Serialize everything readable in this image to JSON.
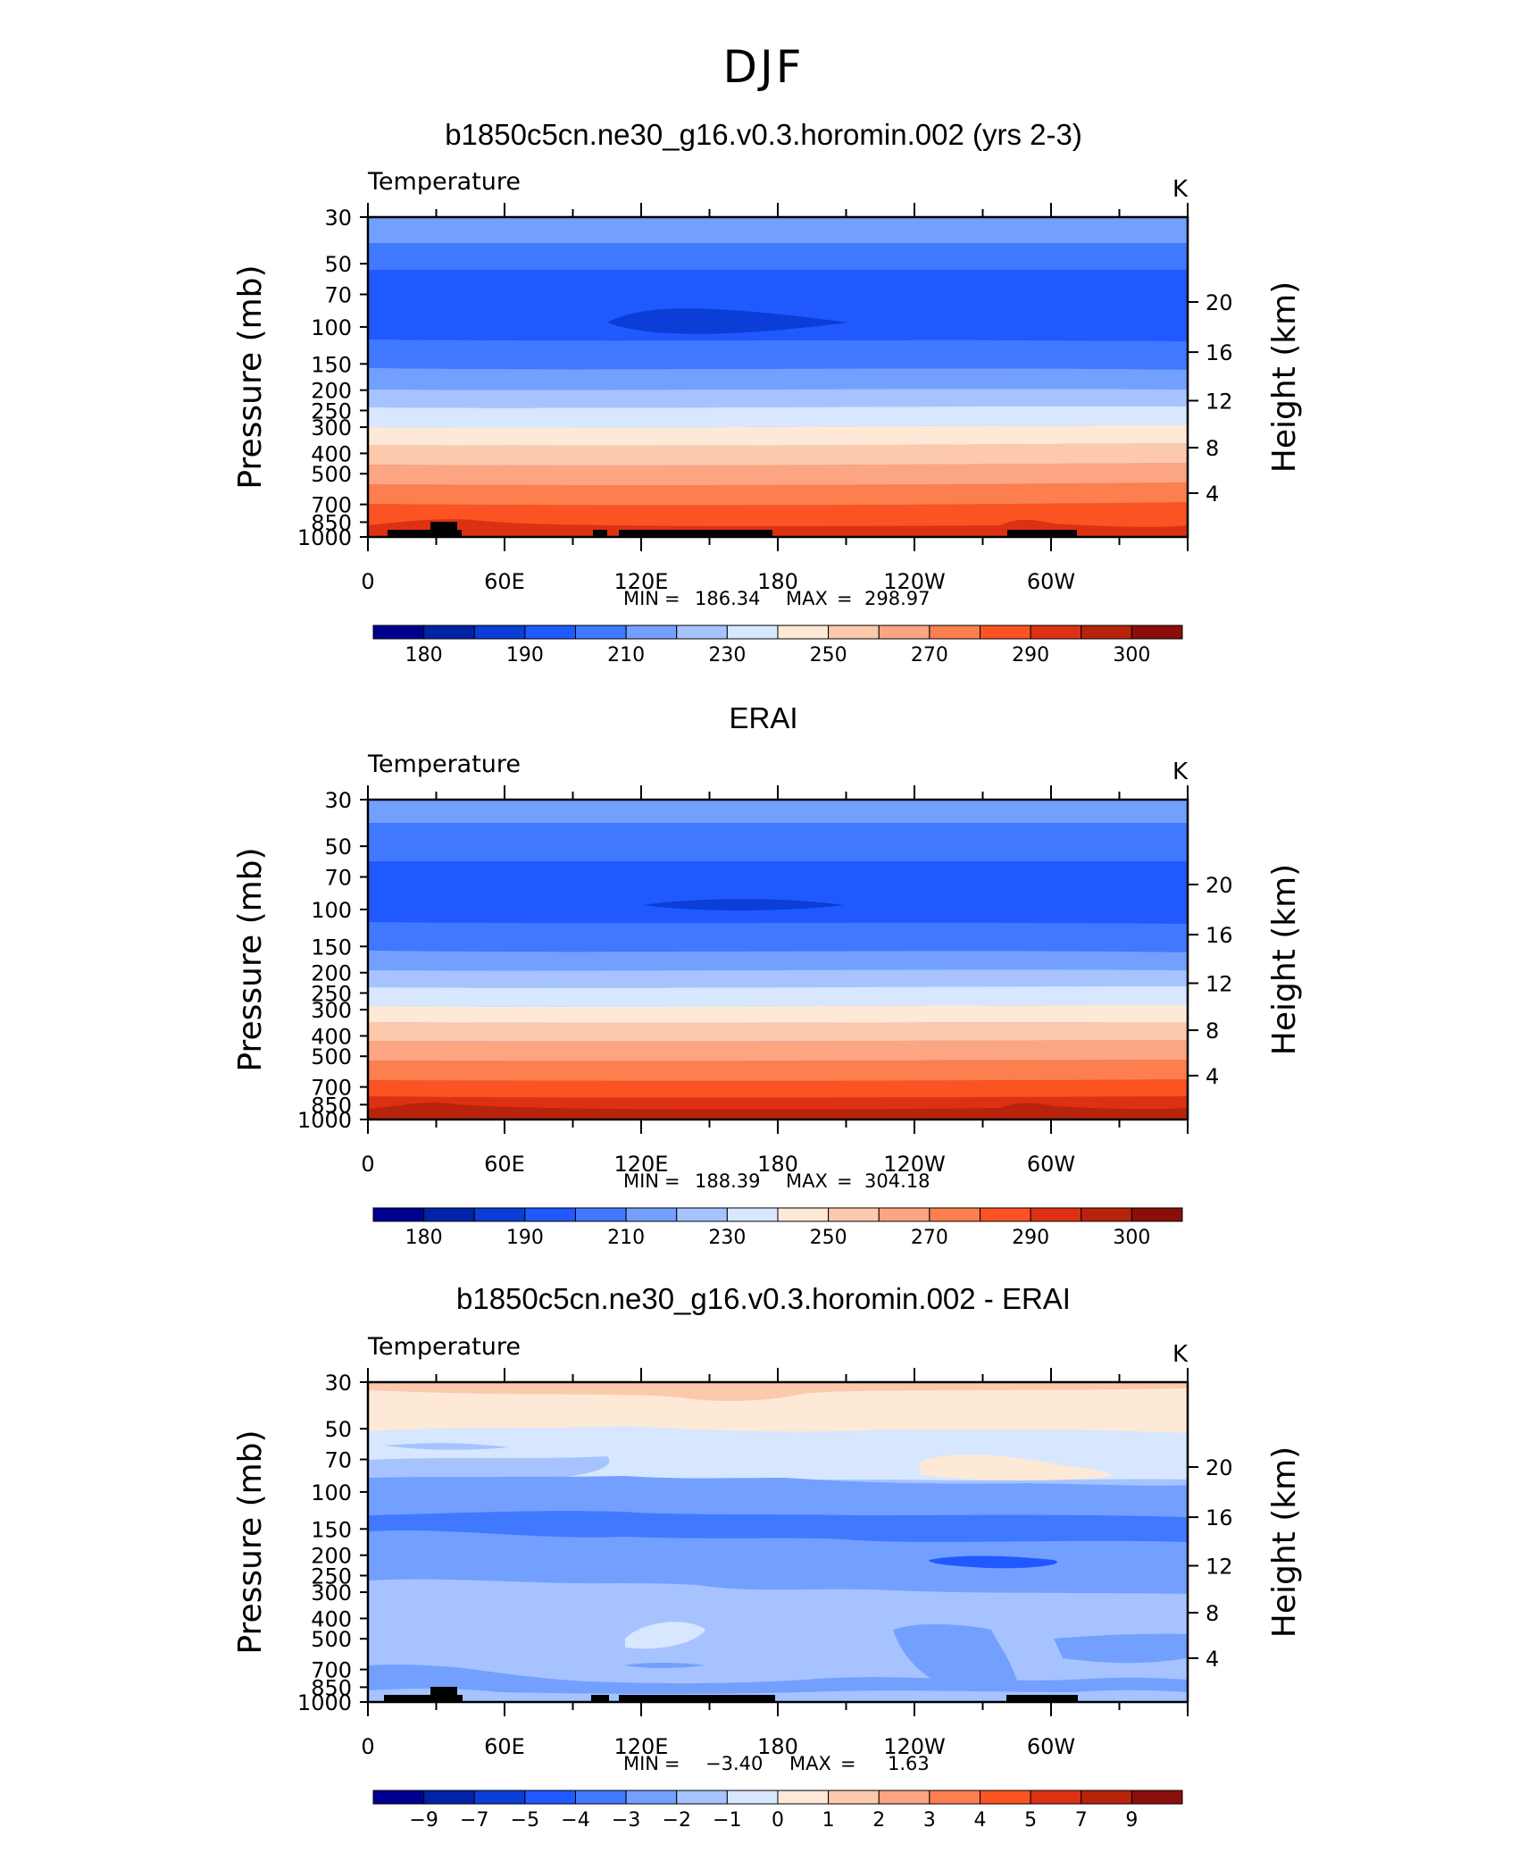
{
  "main_title": "DJF",
  "chart_data": [
    {
      "type": "heatmap",
      "title": "b1850c5cn.ne30_g16.v0.3.horomin.002 (yrs 2-3)",
      "variable": "Temperature",
      "units": "K",
      "ylabel_left": "Pressure (mb)",
      "ylabel_right": "Height (km)",
      "yticks": [
        "30",
        "50",
        "70",
        "100",
        "150",
        "200",
        "250",
        "300",
        "400",
        "500",
        "700",
        "850",
        "1000"
      ],
      "right_ticks": [
        "20",
        "16",
        "12",
        "8",
        "4"
      ],
      "xticks": [
        "0",
        "60E",
        "120E",
        "180",
        "120W",
        "60W"
      ],
      "stats": {
        "min_label": "MIN",
        "min": "186.34",
        "max_label": "MAX",
        "max": "298.97"
      },
      "colorbar_labels": [
        "180",
        "190",
        "210",
        "230",
        "250",
        "270",
        "290",
        "300"
      ],
      "colorbar_colors": [
        "#00008f",
        "#0023a8",
        "#0a3ed6",
        "#2059ff",
        "#4079ff",
        "#73a0ff",
        "#a6c3ff",
        "#d6e7ff",
        "#fde9d6",
        "#fdc9ad",
        "#fca583",
        "#fd7e4e",
        "#fc5322",
        "#de3113",
        "#b8230c",
        "#8a0f0a"
      ],
      "bands_blue_to_red": "cold core near 100 mb, warm surface"
    },
    {
      "type": "heatmap",
      "title": "ERAI",
      "variable": "Temperature",
      "units": "K",
      "ylabel_left": "Pressure (mb)",
      "ylabel_right": "Height (km)",
      "yticks": [
        "30",
        "50",
        "70",
        "100",
        "150",
        "200",
        "250",
        "300",
        "400",
        "500",
        "700",
        "850",
        "1000"
      ],
      "right_ticks": [
        "20",
        "16",
        "12",
        "8",
        "4"
      ],
      "xticks": [
        "0",
        "60E",
        "120E",
        "180",
        "120W",
        "60W"
      ],
      "stats": {
        "min_label": "MIN",
        "min": "188.39",
        "max_label": "MAX",
        "max": "304.18"
      },
      "colorbar_labels": [
        "180",
        "190",
        "210",
        "230",
        "250",
        "270",
        "290",
        "300"
      ],
      "colorbar_colors": [
        "#00008f",
        "#0023a8",
        "#0a3ed6",
        "#2059ff",
        "#4079ff",
        "#73a0ff",
        "#a6c3ff",
        "#d6e7ff",
        "#fde9d6",
        "#fdc9ad",
        "#fca583",
        "#fd7e4e",
        "#fc5322",
        "#de3113",
        "#b8230c",
        "#8a0f0a"
      ]
    },
    {
      "type": "heatmap",
      "title": "b1850c5cn.ne30_g16.v0.3.horomin.002 - ERAI",
      "variable": "Temperature",
      "units": "K",
      "ylabel_left": "Pressure (mb)",
      "ylabel_right": "Height (km)",
      "yticks": [
        "30",
        "50",
        "70",
        "100",
        "150",
        "200",
        "250",
        "300",
        "400",
        "500",
        "700",
        "850",
        "1000"
      ],
      "right_ticks": [
        "20",
        "16",
        "12",
        "8",
        "4"
      ],
      "xticks": [
        "0",
        "60E",
        "120E",
        "180",
        "120W",
        "60W"
      ],
      "stats": {
        "min_label": "MIN",
        "min": "−3.40",
        "max_label": "MAX",
        "max": "1.63"
      },
      "colorbar_labels": [
        "−9",
        "−7",
        "−5",
        "−4",
        "−3",
        "−2",
        "−1",
        "0",
        "1",
        "2",
        "3",
        "4",
        "5",
        "7",
        "9"
      ],
      "colorbar_colors": [
        "#00008f",
        "#0023a8",
        "#0a3ed6",
        "#2059ff",
        "#4079ff",
        "#73a0ff",
        "#a6c3ff",
        "#d6e7ff",
        "#fde9d6",
        "#fdc9ad",
        "#fca583",
        "#fd7e4e",
        "#fc5322",
        "#de3113",
        "#b8230c",
        "#8a0f0a"
      ]
    }
  ]
}
